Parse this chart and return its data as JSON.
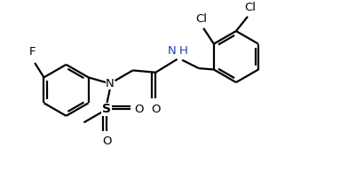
{
  "bg_color": "#ffffff",
  "line_color": "#000000",
  "nh_color": "#2244aa",
  "bond_lw": 1.6,
  "fig_width": 3.92,
  "fig_height": 2.1,
  "dpi": 100,
  "xlim": [
    0.0,
    7.8
  ],
  "ylim": [
    -1.8,
    2.5
  ]
}
